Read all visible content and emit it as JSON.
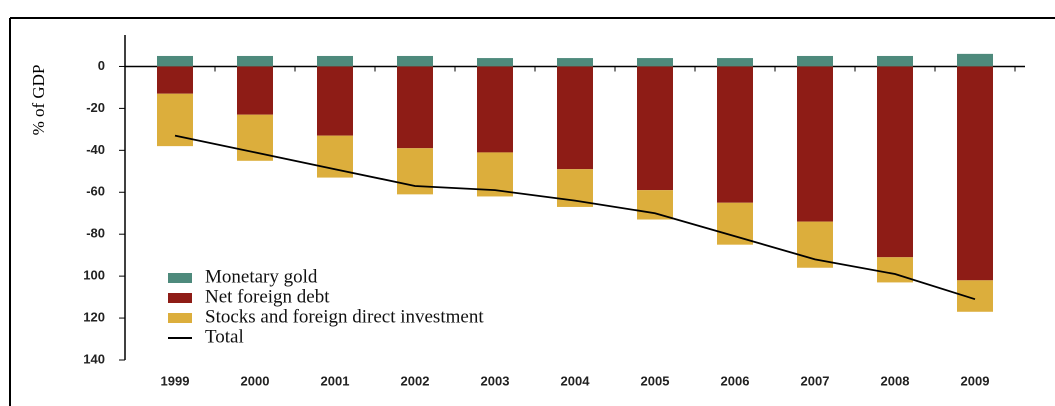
{
  "chart_data": {
    "type": "bar",
    "stacked": true,
    "y_label": "% of GDP",
    "categories": [
      "1999",
      "2000",
      "2001",
      "2002",
      "2003",
      "2004",
      "2005",
      "2006",
      "2007",
      "2008",
      "2009"
    ],
    "series": [
      {
        "name": "Monetary gold",
        "color": "#4e8a7c",
        "values": [
          5,
          5,
          5,
          5,
          4,
          4,
          4,
          4,
          5,
          5,
          6
        ]
      },
      {
        "name": "Net foreign debt",
        "color": "#8e1c16",
        "values": [
          -13,
          -23,
          -33,
          -39,
          -41,
          -49,
          -59,
          -65,
          -74,
          -91,
          -102
        ]
      },
      {
        "name": "Stocks and foreign direct investment",
        "color": "#dcae3c",
        "values": [
          -25,
          -22,
          -20,
          -22,
          -21,
          -18,
          -14,
          -20,
          -22,
          -12,
          -15
        ]
      },
      {
        "name": "Total",
        "type": "line",
        "color": "#000000",
        "values": [
          -33,
          -41,
          -49,
          -57,
          -59,
          -64,
          -70,
          -81,
          -92,
          -99,
          -111
        ]
      }
    ],
    "ylim": [
      -140,
      15
    ],
    "yticks": [
      0,
      -20,
      -40,
      -60,
      -80,
      {
        "value": -100,
        "label": "100"
      },
      {
        "value": -120,
        "label": "120"
      },
      {
        "value": -140,
        "label": "140"
      }
    ]
  }
}
